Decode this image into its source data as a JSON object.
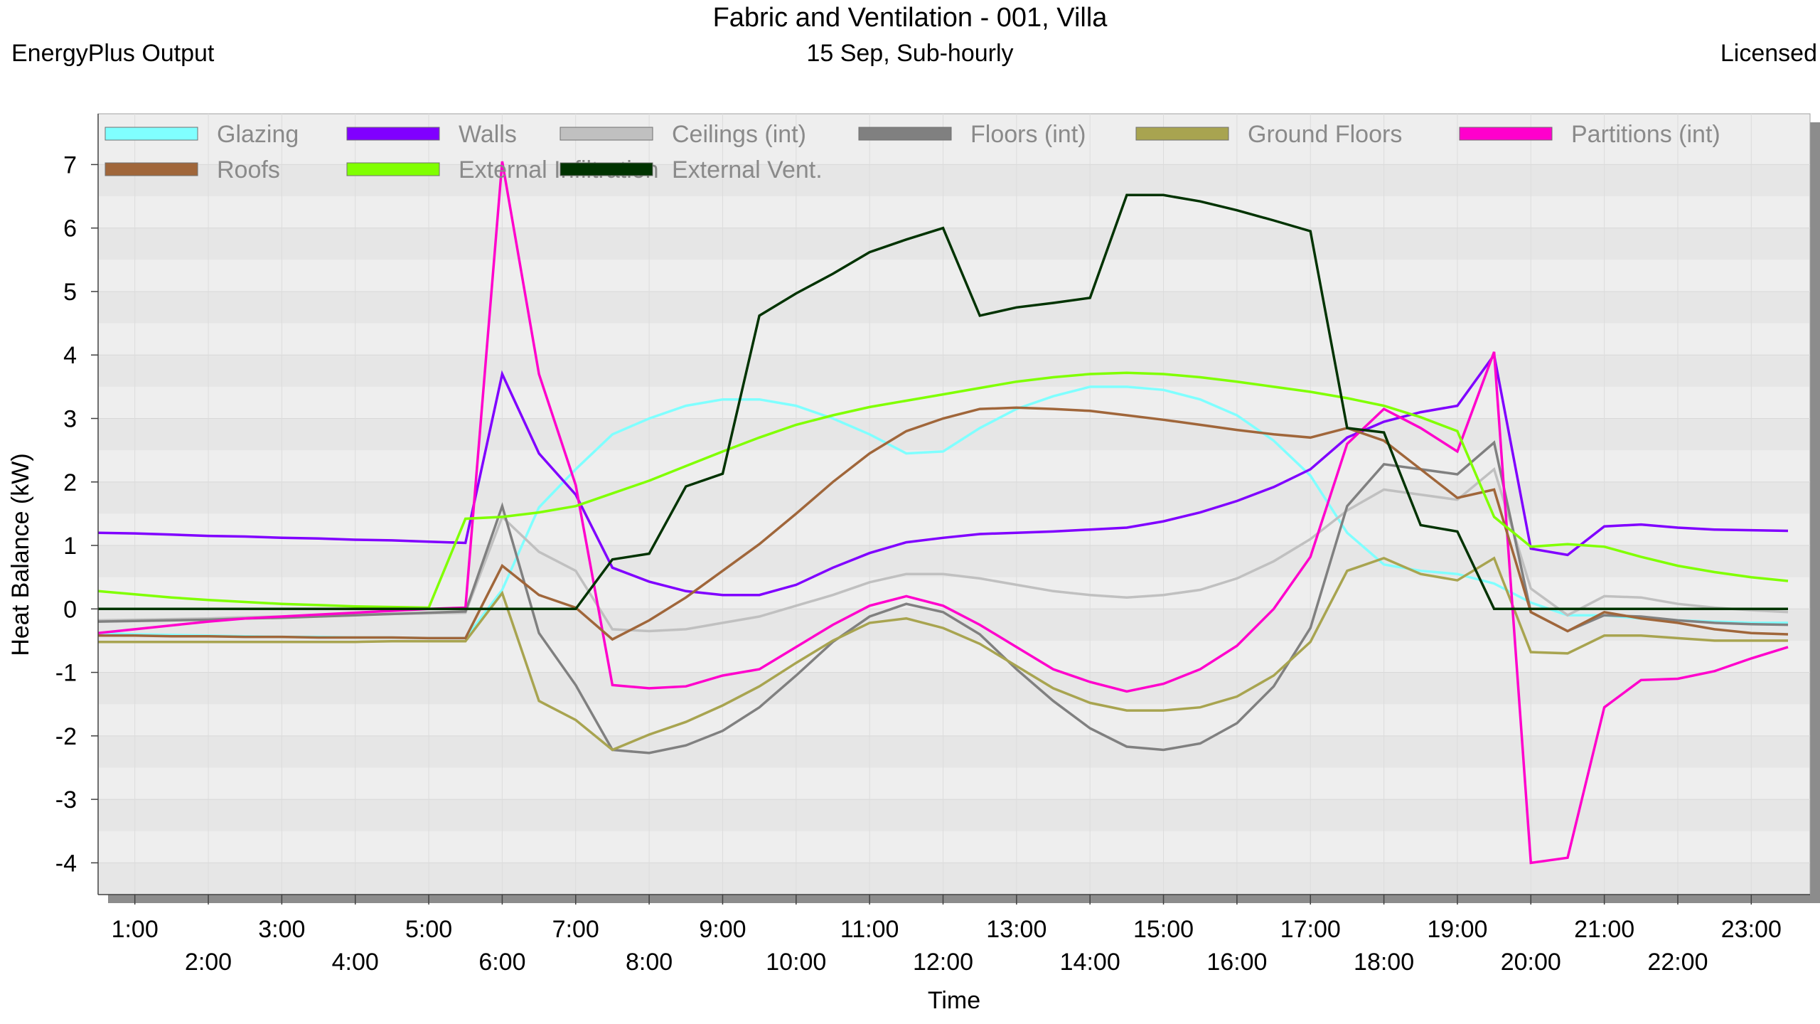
{
  "header": {
    "title": "Fabric and Ventilation - 001, Villa",
    "left": "EnergyPlus Output",
    "center": "15 Sep, Sub-hourly",
    "right": "Licensed"
  },
  "chart_data": {
    "type": "line",
    "title": "Fabric and Ventilation - 001, Villa",
    "subtitle": "15 Sep, Sub-hourly",
    "xlabel": "Time",
    "ylabel": "Heat Balance (kW)",
    "ylim": [
      -4.5,
      7.8
    ],
    "yticks": [
      7,
      6,
      5,
      4,
      3,
      2,
      1,
      0,
      -1,
      -2,
      -3,
      -4
    ],
    "xlim": [
      0.5,
      23.8
    ],
    "xticks": [
      {
        "t": 1,
        "label": "1:00",
        "row": 1
      },
      {
        "t": 2,
        "label": "2:00",
        "row": 2
      },
      {
        "t": 3,
        "label": "3:00",
        "row": 1
      },
      {
        "t": 4,
        "label": "4:00",
        "row": 2
      },
      {
        "t": 5,
        "label": "5:00",
        "row": 1
      },
      {
        "t": 6,
        "label": "6:00",
        "row": 2
      },
      {
        "t": 7,
        "label": "7:00",
        "row": 1
      },
      {
        "t": 8,
        "label": "8:00",
        "row": 2
      },
      {
        "t": 9,
        "label": "9:00",
        "row": 1
      },
      {
        "t": 10,
        "label": "10:00",
        "row": 2
      },
      {
        "t": 11,
        "label": "11:00",
        "row": 1
      },
      {
        "t": 12,
        "label": "12:00",
        "row": 2
      },
      {
        "t": 13,
        "label": "13:00",
        "row": 1
      },
      {
        "t": 14,
        "label": "14:00",
        "row": 2
      },
      {
        "t": 15,
        "label": "15:00",
        "row": 1
      },
      {
        "t": 16,
        "label": "16:00",
        "row": 2
      },
      {
        "t": 17,
        "label": "17:00",
        "row": 1
      },
      {
        "t": 18,
        "label": "18:00",
        "row": 2
      },
      {
        "t": 19,
        "label": "19:00",
        "row": 1
      },
      {
        "t": 20,
        "label": "20:00",
        "row": 2
      },
      {
        "t": 21,
        "label": "21:00",
        "row": 1
      },
      {
        "t": 22,
        "label": "22:00",
        "row": 2
      },
      {
        "t": 23,
        "label": "23:00",
        "row": 1
      }
    ],
    "grid": true,
    "legend_position": "top",
    "x": [
      0.5,
      1.0,
      1.5,
      2.0,
      2.5,
      3.0,
      3.5,
      4.0,
      4.5,
      5.0,
      5.5,
      6.0,
      6.5,
      7.0,
      7.5,
      8.0,
      8.5,
      9.0,
      9.5,
      10.0,
      10.5,
      11.0,
      11.5,
      12.0,
      12.5,
      13.0,
      13.5,
      14.0,
      14.5,
      15.0,
      15.5,
      16.0,
      16.5,
      17.0,
      17.5,
      18.0,
      18.5,
      19.0,
      19.5,
      20.0,
      20.5,
      21.0,
      21.5,
      22.0,
      22.5,
      23.0,
      23.5
    ],
    "series": [
      {
        "name": "Glazing",
        "color": "#80FFFF",
        "values": [
          -0.38,
          -0.4,
          -0.41,
          -0.42,
          -0.43,
          -0.44,
          -0.44,
          -0.45,
          -0.45,
          -0.46,
          -0.46,
          0.3,
          1.6,
          2.2,
          2.75,
          3.0,
          3.2,
          3.3,
          3.3,
          3.2,
          3.0,
          2.75,
          2.45,
          2.48,
          2.85,
          3.15,
          3.35,
          3.5,
          3.5,
          3.45,
          3.3,
          3.05,
          2.65,
          2.1,
          1.2,
          0.7,
          0.6,
          0.55,
          0.4,
          0.1,
          -0.1,
          -0.1,
          -0.15,
          -0.18,
          -0.2,
          -0.22,
          -0.22
        ]
      },
      {
        "name": "Walls",
        "color": "#8000FF",
        "values": [
          1.2,
          1.19,
          1.17,
          1.15,
          1.14,
          1.12,
          1.11,
          1.09,
          1.08,
          1.06,
          1.04,
          3.7,
          2.45,
          1.8,
          0.65,
          0.43,
          0.28,
          0.22,
          0.22,
          0.38,
          0.65,
          0.88,
          1.05,
          1.12,
          1.18,
          1.2,
          1.22,
          1.25,
          1.28,
          1.38,
          1.52,
          1.7,
          1.92,
          2.2,
          2.7,
          2.95,
          3.1,
          3.2,
          4.0,
          0.95,
          0.85,
          1.3,
          1.33,
          1.28,
          1.25,
          1.24,
          1.23
        ]
      },
      {
        "name": "Ceilings (int)",
        "color": "#C0C0C0",
        "values": [
          -0.18,
          -0.17,
          -0.16,
          -0.15,
          -0.13,
          -0.12,
          -0.1,
          -0.09,
          -0.08,
          -0.07,
          -0.06,
          1.45,
          0.9,
          0.6,
          -0.32,
          -0.35,
          -0.32,
          -0.22,
          -0.12,
          0.05,
          0.22,
          0.42,
          0.55,
          0.55,
          0.48,
          0.38,
          0.28,
          0.22,
          0.18,
          0.22,
          0.3,
          0.48,
          0.75,
          1.1,
          1.55,
          1.88,
          1.8,
          1.72,
          2.2,
          0.32,
          -0.1,
          0.2,
          0.18,
          0.08,
          0.02,
          -0.02,
          -0.05
        ]
      },
      {
        "name": "Floors (int)",
        "color": "#808080",
        "values": [
          -0.2,
          -0.19,
          -0.18,
          -0.17,
          -0.15,
          -0.14,
          -0.12,
          -0.1,
          -0.08,
          -0.06,
          -0.04,
          1.62,
          -0.38,
          -1.2,
          -2.22,
          -2.27,
          -2.15,
          -1.92,
          -1.55,
          -1.05,
          -0.52,
          -0.12,
          0.08,
          -0.05,
          -0.4,
          -0.95,
          -1.45,
          -1.88,
          -2.17,
          -2.22,
          -2.12,
          -1.8,
          -1.22,
          -0.3,
          1.62,
          2.28,
          2.2,
          2.12,
          2.62,
          -0.05,
          -0.35,
          -0.1,
          -0.12,
          -0.18,
          -0.22,
          -0.24,
          -0.25
        ]
      },
      {
        "name": "Ground Floors",
        "color": "#A8A450",
        "values": [
          -0.52,
          -0.52,
          -0.52,
          -0.52,
          -0.52,
          -0.52,
          -0.52,
          -0.52,
          -0.51,
          -0.51,
          -0.51,
          0.25,
          -1.45,
          -1.75,
          -2.22,
          -1.98,
          -1.78,
          -1.52,
          -1.22,
          -0.85,
          -0.5,
          -0.22,
          -0.15,
          -0.3,
          -0.55,
          -0.9,
          -1.25,
          -1.48,
          -1.6,
          -1.6,
          -1.55,
          -1.38,
          -1.05,
          -0.52,
          0.6,
          0.8,
          0.55,
          0.45,
          0.8,
          -0.68,
          -0.7,
          -0.42,
          -0.42,
          -0.46,
          -0.5,
          -0.5,
          -0.5
        ]
      },
      {
        "name": "Partitions (int)",
        "color": "#FF00CC",
        "values": [
          -0.38,
          -0.32,
          -0.26,
          -0.2,
          -0.15,
          -0.12,
          -0.09,
          -0.06,
          -0.03,
          0.0,
          0.02,
          7.05,
          3.7,
          1.95,
          -1.2,
          -1.25,
          -1.22,
          -1.05,
          -0.95,
          -0.6,
          -0.25,
          0.05,
          0.2,
          0.05,
          -0.25,
          -0.6,
          -0.95,
          -1.15,
          -1.3,
          -1.18,
          -0.95,
          -0.58,
          0.0,
          0.82,
          2.6,
          3.15,
          2.85,
          2.48,
          4.05,
          -4.0,
          -3.92,
          -1.55,
          -1.12,
          -1.1,
          -0.98,
          -0.78,
          -0.6
        ]
      },
      {
        "name": "Roofs",
        "color": "#A0663A",
        "values": [
          -0.42,
          -0.42,
          -0.43,
          -0.43,
          -0.44,
          -0.44,
          -0.45,
          -0.45,
          -0.45,
          -0.46,
          -0.46,
          0.68,
          0.22,
          0.02,
          -0.48,
          -0.18,
          0.18,
          0.6,
          1.02,
          1.5,
          2.0,
          2.45,
          2.8,
          3.0,
          3.15,
          3.17,
          3.15,
          3.12,
          3.05,
          2.98,
          2.9,
          2.82,
          2.75,
          2.7,
          2.85,
          2.65,
          2.2,
          1.75,
          1.88,
          -0.05,
          -0.35,
          -0.05,
          -0.15,
          -0.22,
          -0.32,
          -0.38,
          -0.4
        ]
      },
      {
        "name": "External Infiltration",
        "color": "#80FF00",
        "values": [
          0.28,
          0.23,
          0.18,
          0.14,
          0.11,
          0.08,
          0.06,
          0.04,
          0.03,
          0.02,
          1.42,
          1.45,
          1.52,
          1.62,
          1.82,
          2.02,
          2.25,
          2.48,
          2.7,
          2.9,
          3.05,
          3.18,
          3.28,
          3.38,
          3.48,
          3.58,
          3.65,
          3.7,
          3.72,
          3.7,
          3.65,
          3.58,
          3.5,
          3.42,
          3.32,
          3.2,
          3.02,
          2.8,
          1.45,
          0.98,
          1.02,
          0.98,
          0.82,
          0.68,
          0.58,
          0.5,
          0.44
        ]
      },
      {
        "name": "External Vent.",
        "color": "#003300",
        "values": [
          0,
          0,
          0,
          0,
          0,
          0,
          0,
          0,
          0,
          0,
          0,
          0,
          0,
          0,
          0.78,
          0.87,
          1.93,
          2.13,
          4.62,
          4.97,
          5.28,
          5.62,
          5.82,
          6.0,
          4.62,
          4.75,
          4.82,
          4.9,
          6.52,
          6.52,
          6.42,
          6.28,
          6.12,
          5.95,
          2.85,
          2.78,
          1.32,
          1.22,
          0,
          0,
          0,
          0,
          0,
          0,
          0,
          0,
          0
        ]
      }
    ]
  }
}
